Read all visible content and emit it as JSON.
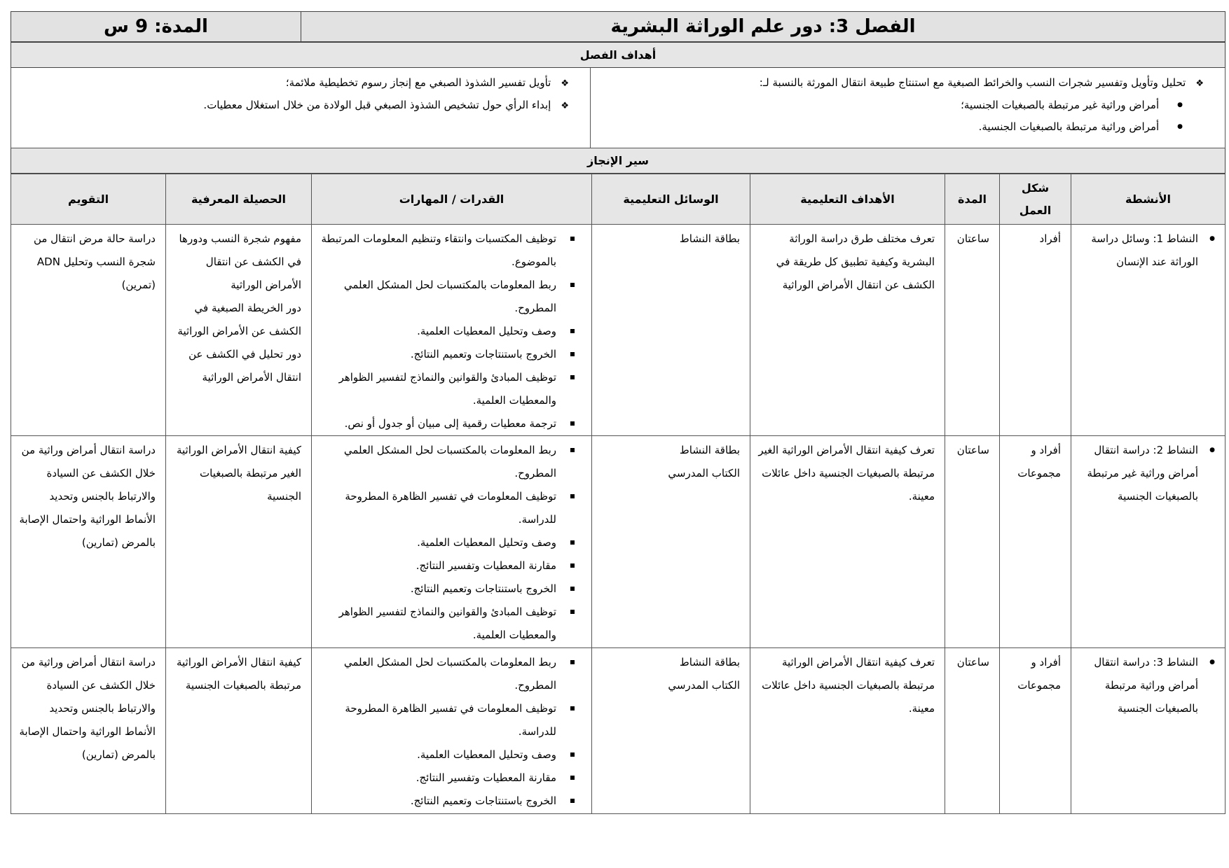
{
  "header": {
    "chapter_title": "الفصل 3: دور علم الوراثة البشرية",
    "duration": "المدة: 9 س"
  },
  "goals": {
    "heading": "أهداف الفصل",
    "right": {
      "main": "تحليل وتأويل وتفسير شجرات النسب والخرائط الصبغية مع استنتاج طبيعة انتقال المورثة بالنسبة لـ:",
      "bullets": [
        "أمراض وراثية غير مرتبطة بالصبغيات الجنسية؛",
        "أمراض وراثية مرتبطة بالصبغيات الجنسية."
      ]
    },
    "left": [
      "تأويل تفسير الشذوذ الصبغي مع إنجاز رسوم تخطيطية ملائمة؛",
      "إبداء الرأي حول تشخيص الشذوذ الصبغي قبل الولادة من خلال استغلال معطيات."
    ]
  },
  "progress": {
    "heading": "سير  الإنجاز",
    "columns": [
      "الأنشطة",
      "شكل العمل",
      "المدة",
      "الأهداف التعليمية",
      "الوسائل التعليمية",
      "القدرات / المهارات",
      "الحصيلة المعرفية",
      "التقويم"
    ],
    "rows": [
      {
        "activity": "النشاط 1: وسائل دراسة الوراثة عند الإنسان",
        "work": "أفراد",
        "duration": "ساعتان",
        "objective": "تعرف مختلف طرق دراسة الوراثة البشرية وكيفية تطبيق كل طريقة في الكشف عن انتقال الأمراض الوراثية",
        "means": "بطاقة النشاط",
        "skills": [
          "توظيف المكتسبات وانتقاء وتنظيم المعلومات المرتبطة بالموضوع.",
          "ربط المعلومات بالمكتسبات لحل المشكل العلمي المطروح.",
          "وصف وتحليل المعطيات العلمية.",
          "الخروج باستنتاجات وتعميم النتائج.",
          "توظيف المبادئ والقوانين والنماذج لتفسير الظواهر والمعطيات العلمية.",
          "ترجمة معطيات رقمية إلى مبيان أو جدول أو نص."
        ],
        "knowledge": "مفهوم شجرة النسب ودورها في الكشف عن انتقال الأمراض الوراثية\nدور الخريطة الصبغية في الكشف عن الأمراض الوراثية\nدور تحليل في الكشف عن انتقال الأمراض الوراثية",
        "evaluation": "دراسة حالة مرض انتقال من شجرة النسب وتحليل ADN (تمرين)"
      },
      {
        "activity": "النشاط 2: دراسة انتقال أمراض وراثية غير مرتبطة بالصبغيات الجنسية",
        "work": "أفراد و مجموعات",
        "duration": "ساعتان",
        "objective": "تعرف كيفية انتقال الأمراض الوراثية الغير مرتبطة بالصبغيات الجنسية داخل عائلات معينة.",
        "means": "بطاقة النشاط\nالكتاب المدرسي",
        "skills": [
          "ربط المعلومات بالمكتسبات لحل المشكل العلمي المطروح.",
          "توظيف المعلومات في تفسير الظاهرة المطروحة للدراسة.",
          "وصف وتحليل المعطيات العلمية.",
          "مقارنة المعطيات وتفسير النتائج.",
          "الخروج باستنتاجات وتعميم النتائج.",
          "توظيف المبادئ والقوانين والنماذج لتفسير الظواهر والمعطيات العلمية."
        ],
        "knowledge": "كيفية انتقال الأمراض الوراثية الغير مرتبطة بالصبغيات الجنسية",
        "evaluation": "دراسة انتقال أمراض وراثية من خلال الكشف عن السيادة والارتباط بالجنس وتحديد الأنماط الوراثية واحتمال الإصابة بالمرض (تمارين)"
      },
      {
        "activity": "النشاط 3: دراسة انتقال أمراض وراثية مرتبطة بالصبغيات الجنسية",
        "work": "أفراد و مجموعات",
        "duration": "ساعتان",
        "objective": "تعرف كيفية انتقال الأمراض الوراثية مرتبطة بالصبغيات الجنسية داخل عائلات معينة.",
        "means": "بطاقة النشاط\nالكتاب المدرسي",
        "skills": [
          "ربط المعلومات بالمكتسبات لحل المشكل العلمي المطروح.",
          "توظيف المعلومات في تفسير الظاهرة المطروحة للدراسة.",
          "وصف وتحليل المعطيات العلمية.",
          "مقارنة المعطيات وتفسير النتائج.",
          "الخروج باستنتاجات وتعميم النتائج."
        ],
        "knowledge": "كيفية انتقال الأمراض الوراثية مرتبطة بالصبغيات الجنسية",
        "evaluation": "دراسة انتقال أمراض وراثية من خلال الكشف عن السيادة والارتباط بالجنس وتحديد الأنماط الوراثية واحتمال الإصابة بالمرض (تمارين)"
      }
    ]
  }
}
